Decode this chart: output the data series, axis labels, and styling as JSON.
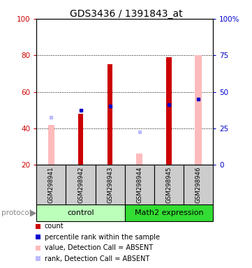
{
  "title": "GDS3436 / 1391843_at",
  "samples": [
    "GSM298941",
    "GSM298942",
    "GSM298943",
    "GSM298944",
    "GSM298945",
    "GSM298946"
  ],
  "red_bars": [
    null,
    48,
    75,
    null,
    79,
    null
  ],
  "pink_bars": [
    42,
    null,
    null,
    26,
    null,
    80
  ],
  "blue_squares_y": [
    46,
    50,
    52,
    38,
    53,
    56
  ],
  "blue_square_absent": [
    true,
    false,
    false,
    true,
    false,
    false
  ],
  "ylim_left": [
    20,
    100
  ],
  "yticks_left": [
    20,
    40,
    60,
    80,
    100
  ],
  "ytick_labels_right": [
    "0",
    "25",
    "50",
    "75",
    "100%"
  ],
  "background_color": "#ffffff",
  "left_tick_color": "#cc0000",
  "right_tick_color": "#0000cc",
  "groups": [
    {
      "name": "control",
      "start": 0,
      "end": 2,
      "color": "#bbffbb"
    },
    {
      "name": "Math2 expression",
      "start": 3,
      "end": 5,
      "color": "#33dd33"
    }
  ],
  "legend_items": [
    {
      "color": "#cc0000",
      "label": "count"
    },
    {
      "color": "#0000cc",
      "label": "percentile rank within the sample"
    },
    {
      "color": "#ffbbbb",
      "label": "value, Detection Call = ABSENT"
    },
    {
      "color": "#bbbbff",
      "label": "rank, Detection Call = ABSENT"
    }
  ]
}
